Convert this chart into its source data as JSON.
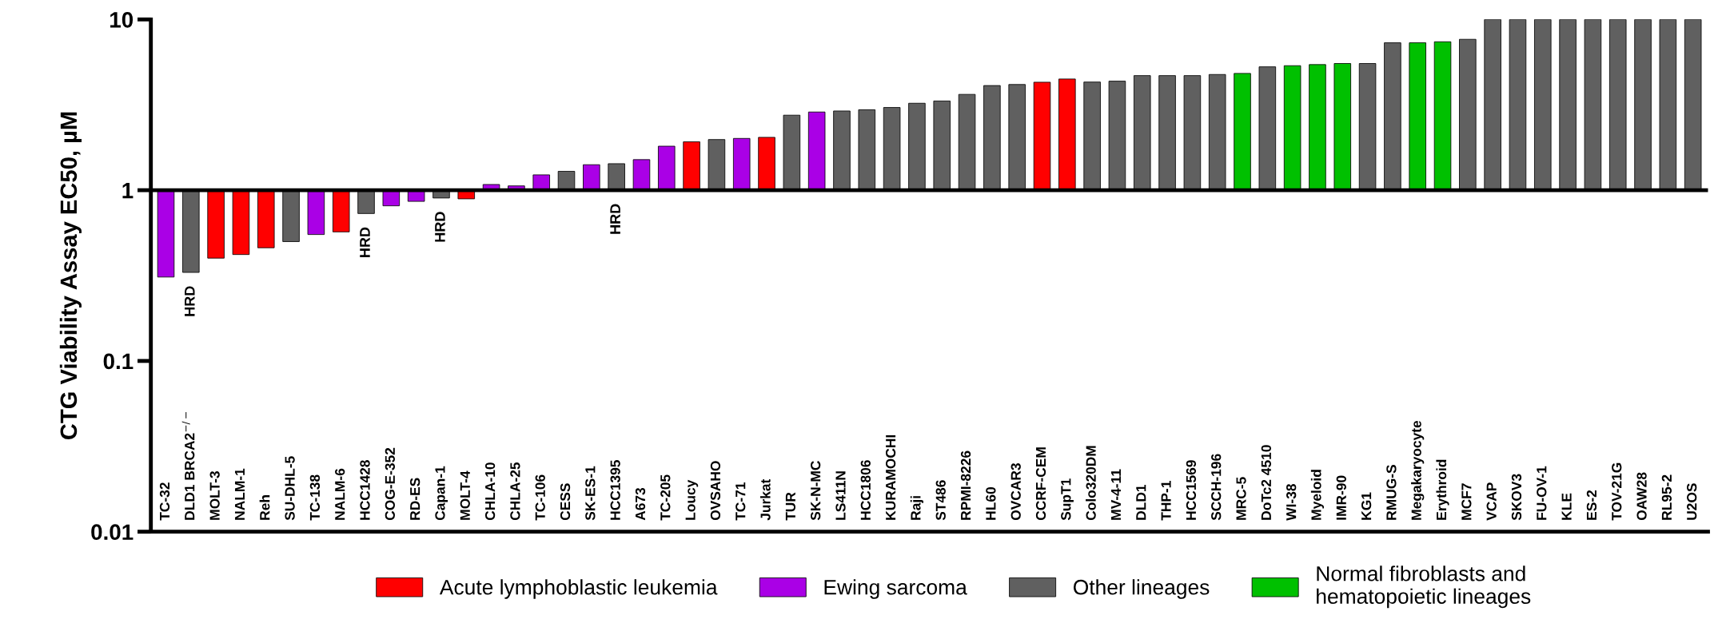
{
  "chart_data": {
    "type": "bar",
    "ylabel": "CTG Viability Assay EC50, µM",
    "log": "y",
    "ylim": [
      0.01,
      10
    ],
    "yticks": [
      0.01,
      0.1,
      1,
      10
    ],
    "grid": false,
    "legend": "bottom",
    "categories": [
      "TC-32",
      "DLD1 BRCA2$^{−/−}$",
      "MOLT-3",
      "NALM-1",
      "Reh",
      "SU-DHL-5",
      "TC-138",
      "NALM-6",
      "HCC1428",
      "COG-E-352",
      "RD-ES",
      "Capan-1",
      "MOLT-4",
      "CHLA-10",
      "CHLA-25",
      "TC-106",
      "CESS",
      "SK-ES-1",
      "HCC1395",
      "A673",
      "TC-205",
      "Loucy",
      "OVSAHO",
      "TC-71",
      "Jurkat",
      "TUR",
      "SK-N-MC",
      "LS411N",
      "HCC1806",
      "KURAMOCHI",
      "Raji",
      "ST486",
      "RPMI-8226",
      "HL60",
      "OVCAR3",
      "CCRF-CEM",
      "SupT1",
      "Colo320DM",
      "MV-4-11",
      "DLD1",
      "THP-1",
      "HCC1569",
      "SCCH-196",
      "MRC-5",
      "DoTc2 4510",
      "WI-38",
      "Myeloid",
      "IMR-90",
      "KG1",
      "RMUG-S",
      "Megakaryocyte",
      "Erythroid",
      "MCF7",
      "VCAP",
      "SKOV3",
      "FU-OV-1",
      "KLE",
      "ES-2",
      "TOV-21G",
      "OAW28",
      "RL95-2",
      "U2OS"
    ],
    "series": [
      {
        "name": "Acute lymphoblastic leukemia",
        "color": "#ff0000",
        "base": [
          null,
          null,
          1,
          1,
          1,
          null,
          null,
          1,
          null,
          null,
          null,
          null,
          1,
          null,
          null,
          null,
          null,
          null,
          null,
          null,
          null,
          1,
          null,
          null,
          1,
          null,
          null,
          null,
          null,
          null,
          null,
          null,
          null,
          null,
          null,
          1,
          1,
          null,
          null,
          null,
          null,
          null,
          null,
          null,
          null,
          null,
          null,
          null,
          null,
          null,
          null,
          null,
          null,
          null,
          null,
          null,
          null,
          null,
          null,
          null,
          null,
          null
        ],
        "values": [
          null,
          null,
          -0.6,
          -0.58,
          -0.54,
          null,
          null,
          -0.43,
          null,
          null,
          null,
          null,
          -0.11,
          null,
          null,
          null,
          null,
          null,
          null,
          null,
          null,
          0.92,
          null,
          null,
          1.04,
          null,
          null,
          null,
          null,
          null,
          null,
          null,
          null,
          null,
          null,
          3.29,
          3.48,
          null,
          null,
          null,
          null,
          null,
          null,
          null,
          null,
          null,
          null,
          null,
          null,
          null,
          null,
          null,
          null,
          null,
          null,
          null,
          null,
          null,
          null,
          null,
          null,
          null
        ]
      },
      {
        "name": "Ewing sarcoma",
        "color": "#aa00e6",
        "base": [
          1,
          null,
          null,
          null,
          null,
          null,
          1,
          null,
          null,
          1,
          1,
          null,
          null,
          1,
          1,
          1,
          null,
          1,
          null,
          1,
          1,
          null,
          null,
          1,
          null,
          null,
          1,
          null,
          null,
          null,
          null,
          null,
          null,
          null,
          null,
          null,
          null,
          null,
          null,
          null,
          null,
          null,
          null,
          null,
          null,
          null,
          null,
          null,
          null,
          null,
          null,
          null,
          null,
          null,
          null,
          null,
          null,
          null,
          null,
          null,
          null,
          null
        ],
        "values": [
          -0.69,
          null,
          null,
          null,
          null,
          null,
          -0.45,
          null,
          null,
          -0.19,
          -0.14,
          null,
          null,
          0.08,
          0.06,
          0.23,
          null,
          0.41,
          null,
          0.51,
          0.81,
          null,
          null,
          1.01,
          null,
          null,
          1.87,
          null,
          null,
          null,
          null,
          null,
          null,
          null,
          null,
          null,
          null,
          null,
          null,
          null,
          null,
          null,
          null,
          null,
          null,
          null,
          null,
          null,
          null,
          null,
          null,
          null,
          null,
          null,
          null,
          null,
          null,
          null,
          null,
          null,
          null,
          null
        ]
      },
      {
        "name": "Other lineages",
        "color": "#606060",
        "base": [
          null,
          1,
          null,
          null,
          null,
          1,
          null,
          null,
          1,
          null,
          null,
          1,
          null,
          null,
          null,
          null,
          1,
          null,
          1,
          null,
          null,
          null,
          1,
          null,
          null,
          1,
          null,
          1,
          1,
          1,
          1,
          1,
          1,
          1,
          1,
          null,
          null,
          1,
          1,
          1,
          1,
          1,
          1,
          null,
          1,
          null,
          null,
          null,
          1,
          1,
          null,
          null,
          1,
          1,
          1,
          1,
          1,
          1,
          1,
          1,
          1,
          1
        ],
        "values": [
          null,
          -0.67,
          null,
          null,
          null,
          -0.5,
          null,
          null,
          -0.27,
          null,
          null,
          -0.1,
          null,
          null,
          null,
          null,
          0.29,
          null,
          0.43,
          null,
          null,
          null,
          0.98,
          null,
          null,
          1.75,
          null,
          1.91,
          1.96,
          2.05,
          2.23,
          2.33,
          2.64,
          3.1,
          3.16,
          null,
          null,
          3.3,
          3.35,
          3.69,
          3.69,
          3.69,
          3.76,
          null,
          4.28,
          null,
          null,
          null,
          4.52,
          6.3,
          null,
          null,
          6.65,
          9,
          9,
          9,
          9,
          9,
          9,
          9,
          9,
          9
        ]
      },
      {
        "name": "Normal fibroblasts and\nhematopoietic lineages",
        "color": "#00c000",
        "base": [
          null,
          null,
          null,
          null,
          null,
          null,
          null,
          null,
          null,
          null,
          null,
          null,
          null,
          null,
          null,
          null,
          null,
          null,
          null,
          null,
          null,
          null,
          null,
          null,
          null,
          null,
          null,
          null,
          null,
          null,
          null,
          null,
          null,
          null,
          null,
          null,
          null,
          null,
          null,
          null,
          null,
          null,
          null,
          1,
          null,
          1,
          1,
          1,
          null,
          null,
          1,
          1,
          null,
          null,
          null,
          null,
          null,
          null,
          null,
          null,
          null,
          null
        ],
        "values": [
          null,
          null,
          null,
          null,
          null,
          null,
          null,
          null,
          null,
          null,
          null,
          null,
          null,
          null,
          null,
          null,
          null,
          null,
          null,
          null,
          null,
          null,
          null,
          null,
          null,
          null,
          null,
          null,
          null,
          null,
          null,
          null,
          null,
          null,
          null,
          null,
          null,
          null,
          null,
          null,
          null,
          null,
          null,
          3.83,
          null,
          4.36,
          4.44,
          4.52,
          null,
          null,
          6.3,
          6.4,
          null,
          null,
          null,
          null,
          null,
          null,
          null,
          null,
          null,
          null
        ]
      }
    ],
    "ref_lines": [
      {
        "axis": "y",
        "value": 1,
        "color": "#000000"
      }
    ],
    "annotations": [
      {
        "text": "HRD",
        "x": "DLD1 BRCA2$^{−/−}$",
        "y": 0.33
      },
      {
        "text": "HRD",
        "x": "HCC1428",
        "y": 0.73
      },
      {
        "text": "HRD",
        "x": "Capan-1",
        "y": 0.9
      },
      {
        "text": "HRD",
        "x": "HCC1395",
        "y": 1.43
      }
    ]
  }
}
